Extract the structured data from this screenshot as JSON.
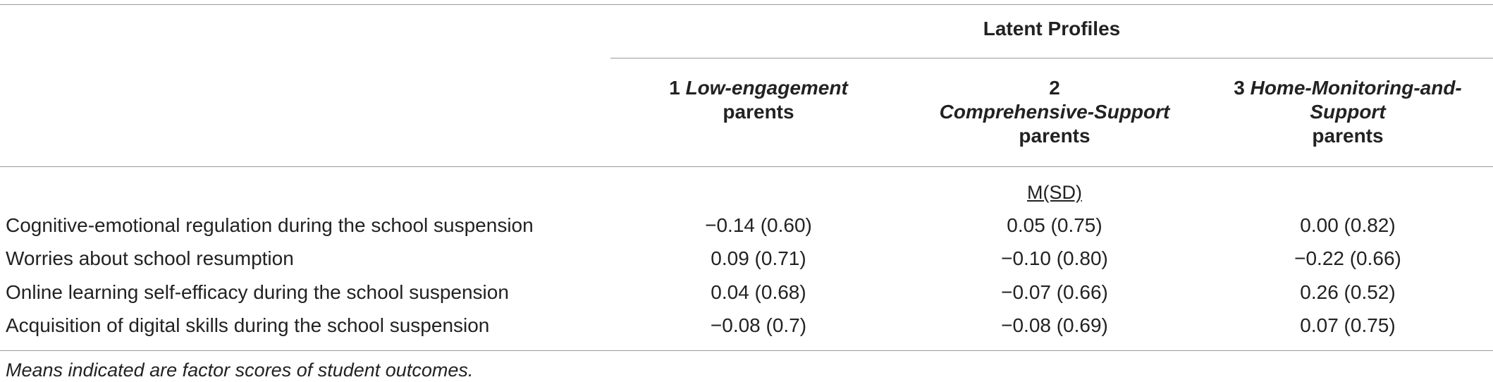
{
  "table": {
    "spanner_title": "Latent Profiles",
    "columns": [
      {
        "line1_prefix": "1",
        "line1_italic": "Low-engagement",
        "line2": "parents",
        "line3": ""
      },
      {
        "line1_prefix": "2",
        "line1_italic": "Comprehensive-Support",
        "line2": "parents",
        "line3": ""
      },
      {
        "line1_prefix": "3",
        "line1_italic": "Home-Monitoring-and-",
        "line2_italic": "Support",
        "line3": "parents"
      }
    ],
    "stat_label": "M(SD)",
    "rows": [
      {
        "label": "Cognitive-emotional regulation during the school suspension",
        "values": [
          "−0.14 (0.60)",
          "0.05 (0.75)",
          "0.00 (0.82)"
        ]
      },
      {
        "label": "Worries about school resumption",
        "values": [
          "0.09 (0.71)",
          "−0.10 (0.80)",
          "−0.22 (0.66)"
        ]
      },
      {
        "label": "Online learning self-efficacy during the school suspension",
        "values": [
          "0.04 (0.68)",
          "−0.07 (0.66)",
          "0.26 (0.52)"
        ]
      },
      {
        "label": "Acquisition of digital skills during the school suspension",
        "values": [
          "−0.08 (0.7)",
          "−0.08 (0.69)",
          "0.07 (0.75)"
        ]
      }
    ],
    "note": "Means indicated are factor scores of student outcomes."
  }
}
